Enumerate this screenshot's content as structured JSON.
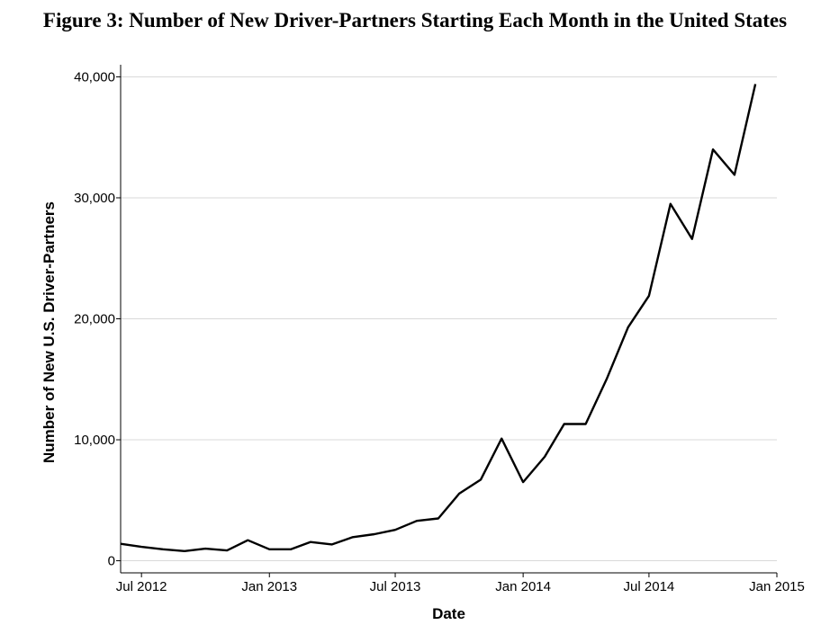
{
  "figure_title": "Figure 3: Number of New Driver-Partners Starting Each Month in the United States",
  "chart_data": {
    "type": "line",
    "title": "Figure 3: Number of New Driver-Partners Starting Each Month in the United States",
    "xlabel": "Date",
    "ylabel": "Number of New U.S. Driver-Partners",
    "x_ticks": [
      {
        "date": "2012-07-01",
        "label": "Jul 2012"
      },
      {
        "date": "2013-01-01",
        "label": "Jan 2013"
      },
      {
        "date": "2013-07-01",
        "label": "Jul 2013"
      },
      {
        "date": "2014-01-01",
        "label": "Jan 2014"
      },
      {
        "date": "2014-07-01",
        "label": "Jul 2014"
      },
      {
        "date": "2015-01-01",
        "label": "Jan 2015"
      }
    ],
    "y_ticks": [
      {
        "value": 0,
        "label": "0"
      },
      {
        "value": 10000,
        "label": "10,000"
      },
      {
        "value": 20000,
        "label": "20,000"
      },
      {
        "value": 30000,
        "label": "30,000"
      },
      {
        "value": 40000,
        "label": "40,000"
      }
    ],
    "xlim": [
      "2012-06-01",
      "2015-01-01"
    ],
    "ylim": [
      -1000,
      41000
    ],
    "grid": "horizontal",
    "line_color": "#000000",
    "grid_color": "#d9d9d9",
    "series": [
      {
        "x": [
          "2012-06-01",
          "2012-07-01",
          "2012-08-01",
          "2012-09-01",
          "2012-10-01",
          "2012-11-01",
          "2012-12-01",
          "2013-01-01",
          "2013-02-01",
          "2013-03-01",
          "2013-04-01",
          "2013-05-01",
          "2013-06-01",
          "2013-07-01",
          "2013-08-01",
          "2013-09-01",
          "2013-10-01",
          "2013-11-01",
          "2013-12-01",
          "2014-01-01",
          "2014-02-01",
          "2014-03-01",
          "2014-04-01",
          "2014-05-01",
          "2014-06-01",
          "2014-07-01",
          "2014-08-01",
          "2014-09-01",
          "2014-10-01",
          "2014-11-01",
          "2014-12-01"
        ],
        "y": [
          1400,
          1150,
          950,
          800,
          1000,
          850,
          1700,
          950,
          950,
          1550,
          1350,
          1950,
          2200,
          2550,
          3300,
          3500,
          5550,
          6700,
          10100,
          6500,
          8600,
          11300,
          11300,
          15000,
          19300,
          21900,
          29500,
          26600,
          34000,
          31900,
          39400
        ]
      }
    ]
  }
}
